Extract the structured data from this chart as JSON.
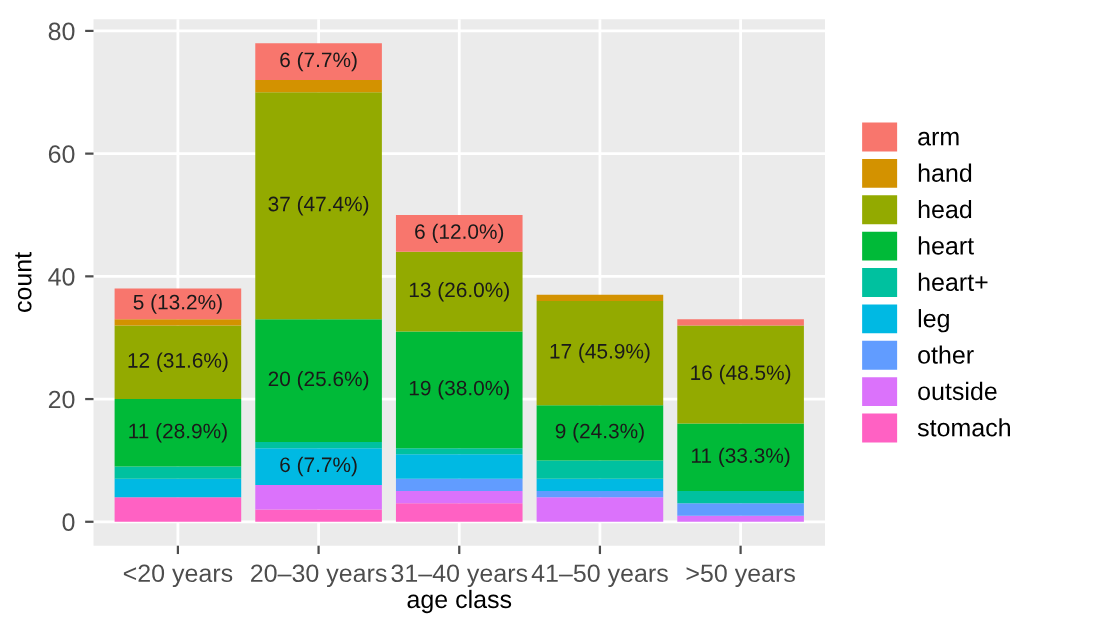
{
  "chart_data": {
    "type": "bar",
    "stacked": true,
    "xlabel": "age class",
    "ylabel": "count",
    "categories": [
      "<20 years",
      "20–30 years",
      "31–40 years",
      "41–50 years",
      ">50 years"
    ],
    "series": [
      {
        "name": "stomach",
        "color": "#ff61c3",
        "values": [
          4,
          2,
          3,
          0,
          0
        ],
        "value_labels": [
          null,
          null,
          null,
          null,
          null
        ]
      },
      {
        "name": "outside",
        "color": "#db72fb",
        "values": [
          0,
          4,
          2,
          4,
          1
        ],
        "value_labels": [
          null,
          null,
          null,
          null,
          null
        ]
      },
      {
        "name": "other",
        "color": "#619cff",
        "values": [
          0,
          0,
          2,
          1,
          2
        ],
        "value_labels": [
          null,
          null,
          null,
          null,
          null
        ]
      },
      {
        "name": "leg",
        "color": "#00b9e3",
        "values": [
          3,
          6,
          4,
          2,
          0
        ],
        "value_labels": [
          null,
          "6 (7.7%)",
          null,
          null,
          null
        ]
      },
      {
        "name": "heart+",
        "color": "#00c19f",
        "values": [
          2,
          1,
          1,
          3,
          2
        ],
        "value_labels": [
          null,
          null,
          null,
          null,
          null
        ]
      },
      {
        "name": "heart",
        "color": "#00ba38",
        "values": [
          11,
          20,
          19,
          9,
          11
        ],
        "value_labels": [
          "11 (28.9%)",
          "20 (25.6%)",
          "19 (38.0%)",
          "9 (24.3%)",
          "11 (33.3%)"
        ]
      },
      {
        "name": "head",
        "color": "#93aa00",
        "values": [
          12,
          37,
          13,
          17,
          16
        ],
        "value_labels": [
          "12 (31.6%)",
          "37 (47.4%)",
          "13 (26.0%)",
          "17 (45.9%)",
          "16 (48.5%)"
        ]
      },
      {
        "name": "hand",
        "color": "#d39200",
        "values": [
          1,
          2,
          0,
          1,
          0
        ],
        "value_labels": [
          null,
          null,
          null,
          null,
          null
        ]
      },
      {
        "name": "arm",
        "color": "#f8766d",
        "values": [
          5,
          6,
          6,
          0,
          1
        ],
        "value_labels": [
          "5 (13.2%)",
          "6 (7.7%)",
          "6 (12.0%)",
          null,
          null
        ]
      }
    ],
    "ylim": [
      -3.9,
      81.9
    ],
    "yticks": [
      0,
      20,
      40,
      60,
      80
    ],
    "grid": true,
    "legend": "right"
  }
}
